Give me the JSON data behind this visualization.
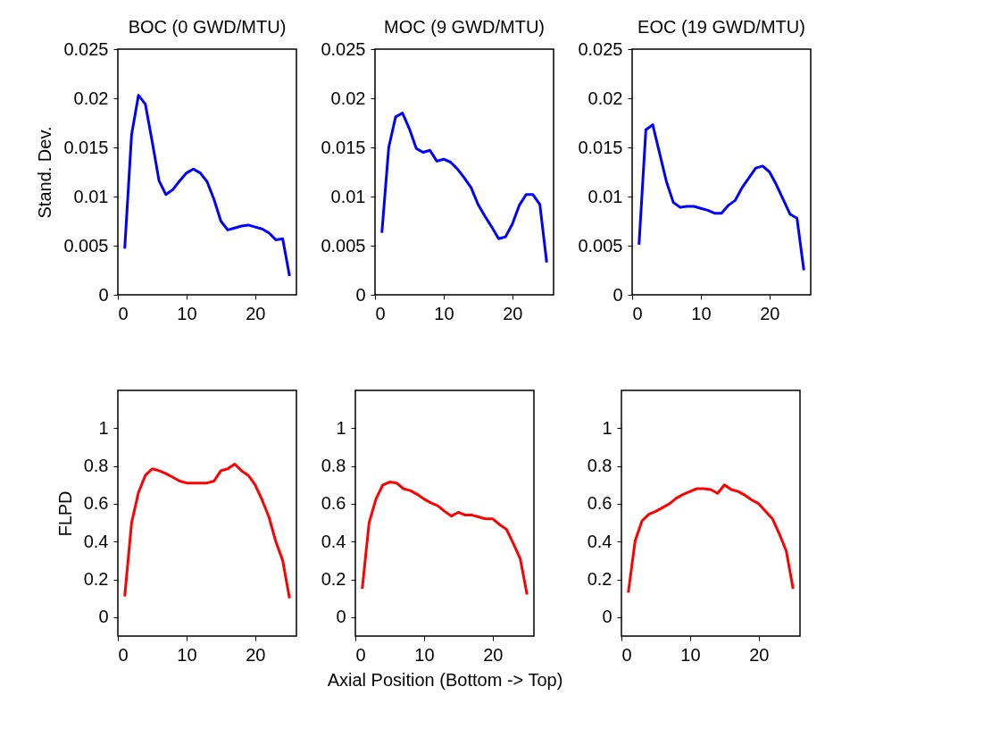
{
  "chart_data": [
    {
      "type": "line",
      "title": "BOC (0 GWD/MTU)",
      "ylabel": "Stand. Dev.",
      "x": [
        1,
        2,
        3,
        4,
        5,
        6,
        7,
        8,
        9,
        10,
        11,
        12,
        13,
        14,
        15,
        16,
        17,
        18,
        19,
        20,
        21,
        22,
        23,
        24,
        25
      ],
      "xlim": [
        0,
        26
      ],
      "xticks": [
        0,
        10,
        20
      ],
      "ylim": [
        0,
        0.025
      ],
      "yticks": [
        0,
        0.005,
        0.01,
        0.015,
        0.02,
        0.025
      ],
      "grid": false,
      "line_style": "solid",
      "series": [
        {
          "color": "#0000ff",
          "values": [
            0.0047,
            0.0163,
            0.0203,
            0.0194,
            0.0156,
            0.0116,
            0.0102,
            0.0107,
            0.0116,
            0.0124,
            0.0128,
            0.0124,
            0.0115,
            0.0097,
            0.0075,
            0.0066,
            0.0068,
            0.007,
            0.0071,
            0.0069,
            0.0067,
            0.0063,
            0.0056,
            0.0057,
            0.0019
          ]
        }
      ]
    },
    {
      "type": "line",
      "title": "MOC (9 GWD/MTU)",
      "x": [
        1,
        2,
        3,
        4,
        5,
        6,
        7,
        8,
        9,
        10,
        11,
        12,
        13,
        14,
        15,
        16,
        17,
        18,
        19,
        20,
        21,
        22,
        23,
        24,
        25
      ],
      "xlim": [
        0,
        26
      ],
      "xticks": [
        0,
        10,
        20
      ],
      "ylim": [
        0,
        0.025
      ],
      "yticks": [
        0,
        0.005,
        0.01,
        0.015,
        0.02,
        0.025
      ],
      "grid": false,
      "line_style": "solid",
      "series": [
        {
          "color": "#0000ff",
          "values": [
            0.0063,
            0.015,
            0.0181,
            0.0185,
            0.0169,
            0.0149,
            0.0145,
            0.0147,
            0.0136,
            0.0138,
            0.0135,
            0.0128,
            0.0119,
            0.0109,
            0.0092,
            0.008,
            0.0069,
            0.0057,
            0.0059,
            0.0072,
            0.0091,
            0.0102,
            0.0102,
            0.0092,
            0.0033
          ]
        }
      ]
    },
    {
      "type": "line",
      "title": "EOC (19 GWD/MTU)",
      "x": [
        1,
        2,
        3,
        4,
        5,
        6,
        7,
        8,
        9,
        10,
        11,
        12,
        13,
        14,
        15,
        16,
        17,
        18,
        19,
        20,
        21,
        22,
        23,
        24,
        25
      ],
      "xlim": [
        0,
        26
      ],
      "xticks": [
        0,
        10,
        20
      ],
      "ylim": [
        0,
        0.025
      ],
      "yticks": [
        0,
        0.005,
        0.01,
        0.015,
        0.02,
        0.025
      ],
      "grid": false,
      "line_style": "solid",
      "series": [
        {
          "color": "#0000ff",
          "values": [
            0.0051,
            0.0168,
            0.0173,
            0.0144,
            0.0115,
            0.0094,
            0.0089,
            0.009,
            0.009,
            0.0088,
            0.0086,
            0.0083,
            0.0083,
            0.0091,
            0.0096,
            0.0109,
            0.0119,
            0.0129,
            0.0131,
            0.0125,
            0.0112,
            0.0097,
            0.0082,
            0.0078,
            0.0025
          ]
        }
      ]
    },
    {
      "type": "line",
      "ylabel": "FLPD",
      "x": [
        1,
        2,
        3,
        4,
        5,
        6,
        7,
        8,
        9,
        10,
        11,
        12,
        13,
        14,
        15,
        16,
        17,
        18,
        19,
        20,
        21,
        22,
        23,
        24,
        25
      ],
      "xlim": [
        0,
        26
      ],
      "xticks": [
        0,
        10,
        20
      ],
      "ylim": [
        -0.1,
        1.2
      ],
      "yticks": [
        0,
        0.2,
        0.4,
        0.6,
        0.8,
        1
      ],
      "grid": false,
      "line_style": "solid",
      "series": [
        {
          "color": "#ff0000",
          "values": [
            0.11,
            0.5,
            0.66,
            0.75,
            0.785,
            0.775,
            0.76,
            0.74,
            0.72,
            0.71,
            0.71,
            0.71,
            0.71,
            0.72,
            0.775,
            0.785,
            0.81,
            0.775,
            0.75,
            0.7,
            0.62,
            0.53,
            0.4,
            0.3,
            0.1
          ]
        }
      ]
    },
    {
      "type": "line",
      "xlabel": "Axial Position (Bottom -> Top)",
      "x": [
        1,
        2,
        3,
        4,
        5,
        6,
        7,
        8,
        9,
        10,
        11,
        12,
        13,
        14,
        15,
        16,
        17,
        18,
        19,
        20,
        21,
        22,
        23,
        24,
        25
      ],
      "xlim": [
        0,
        26
      ],
      "xticks": [
        0,
        10,
        20
      ],
      "ylim": [
        -0.1,
        1.2
      ],
      "yticks": [
        0,
        0.2,
        0.4,
        0.6,
        0.8,
        1
      ],
      "grid": false,
      "line_style": "solid",
      "series": [
        {
          "color": "#ff0000",
          "values": [
            0.15,
            0.5,
            0.625,
            0.7,
            0.715,
            0.71,
            0.68,
            0.67,
            0.65,
            0.625,
            0.605,
            0.59,
            0.56,
            0.535,
            0.555,
            0.54,
            0.54,
            0.53,
            0.52,
            0.52,
            0.49,
            0.465,
            0.39,
            0.31,
            0.12
          ]
        }
      ]
    },
    {
      "type": "line",
      "x": [
        1,
        2,
        3,
        4,
        5,
        6,
        7,
        8,
        9,
        10,
        11,
        12,
        13,
        14,
        15,
        16,
        17,
        18,
        19,
        20,
        21,
        22,
        23,
        24,
        25
      ],
      "xlim": [
        0,
        26
      ],
      "xticks": [
        0,
        10,
        20
      ],
      "ylim": [
        -0.1,
        1.2
      ],
      "yticks": [
        0,
        0.2,
        0.4,
        0.6,
        0.8,
        1
      ],
      "grid": false,
      "line_style": "solid",
      "series": [
        {
          "color": "#ff0000",
          "values": [
            0.13,
            0.405,
            0.51,
            0.545,
            0.56,
            0.58,
            0.6,
            0.63,
            0.65,
            0.665,
            0.68,
            0.68,
            0.675,
            0.655,
            0.7,
            0.675,
            0.665,
            0.645,
            0.62,
            0.6,
            0.56,
            0.52,
            0.44,
            0.35,
            0.15
          ]
        }
      ]
    }
  ]
}
